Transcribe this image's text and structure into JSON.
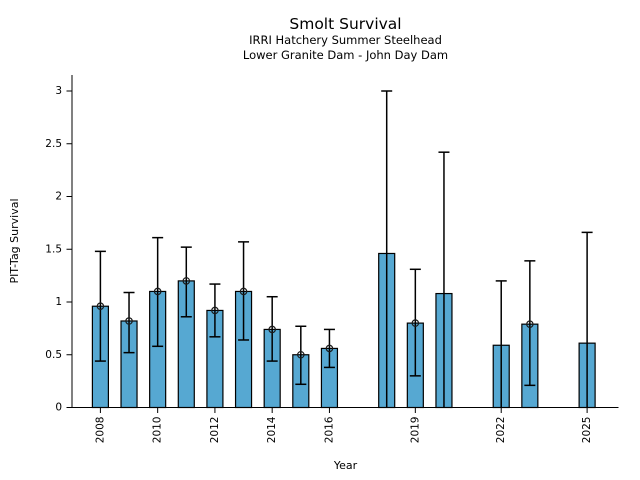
{
  "figure": {
    "title": "Smolt Survival",
    "subtitle_line1": "IRRI Hatchery Summer Steelhead",
    "subtitle_line2": "Lower Granite Dam - John Day Dam"
  },
  "chart_data": {
    "type": "bar",
    "title": "Smolt Survival",
    "subtitle": [
      "IRRI Hatchery Summer Steelhead",
      "Lower Granite Dam - John Day Dam"
    ],
    "xlabel": "Year",
    "ylabel": "PIT-Tag Survival",
    "ylim": [
      0,
      3.15
    ],
    "xlim": [
      2007.0,
      2026.1
    ],
    "yticks": [
      0,
      0.5,
      1,
      1.5,
      2,
      2.5,
      3
    ],
    "xticks": [
      2008,
      2010,
      2012,
      2014,
      2016,
      2019,
      2022,
      2025
    ],
    "grid": false,
    "legend": "none",
    "bar_fill_color": "#56A8D2",
    "bar_edge_color": "#000000",
    "errorbar_color": "#000000",
    "marker_style": "open-circle",
    "series": [
      {
        "name": "PIT-Tag Survival",
        "points": [
          {
            "year": 2008,
            "value": 0.96,
            "err_lo": 0.44,
            "err_hi": 1.48,
            "marker": true
          },
          {
            "year": 2009,
            "value": 0.82,
            "err_lo": 0.52,
            "err_hi": 1.09,
            "marker": true
          },
          {
            "year": 2010,
            "value": 1.1,
            "err_lo": 0.58,
            "err_hi": 1.61,
            "marker": true
          },
          {
            "year": 2011,
            "value": 1.2,
            "err_lo": 0.86,
            "err_hi": 1.52,
            "marker": true
          },
          {
            "year": 2012,
            "value": 0.92,
            "err_lo": 0.67,
            "err_hi": 1.17,
            "marker": true
          },
          {
            "year": 2013,
            "value": 1.1,
            "err_lo": 0.64,
            "err_hi": 1.57,
            "marker": true
          },
          {
            "year": 2014,
            "value": 0.74,
            "err_lo": 0.44,
            "err_hi": 1.05,
            "marker": true
          },
          {
            "year": 2015,
            "value": 0.5,
            "err_lo": 0.22,
            "err_hi": 0.77,
            "marker": true
          },
          {
            "year": 2016,
            "value": 0.56,
            "err_lo": 0.38,
            "err_hi": 0.74,
            "marker": true
          },
          {
            "year": 2018,
            "value": 1.46,
            "err_lo": 0.0,
            "err_hi": 3.0,
            "marker": false
          },
          {
            "year": 2019,
            "value": 0.8,
            "err_lo": 0.3,
            "err_hi": 1.31,
            "marker": true
          },
          {
            "year": 2020,
            "value": 1.08,
            "err_lo": 0.0,
            "err_hi": 2.42,
            "marker": false
          },
          {
            "year": 2022,
            "value": 0.59,
            "err_lo": 0.0,
            "err_hi": 1.2,
            "marker": false
          },
          {
            "year": 2023,
            "value": 0.79,
            "err_lo": 0.21,
            "err_hi": 1.39,
            "marker": true
          },
          {
            "year": 2025,
            "value": 0.61,
            "err_lo": 0.0,
            "err_hi": 1.66,
            "marker": false
          }
        ]
      }
    ]
  }
}
